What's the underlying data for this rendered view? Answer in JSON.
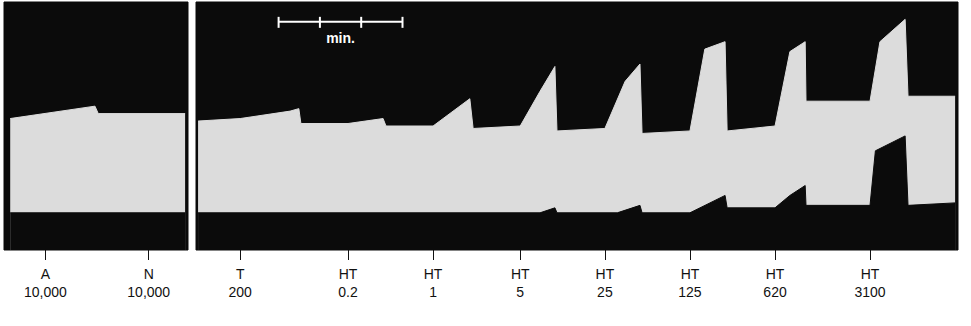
{
  "chart_data": [
    {
      "type": "area",
      "color": "#dcdcdc",
      "xlim": [
        0,
        4.45
      ],
      "ylim": [
        0,
        100
      ],
      "tick_labels": "x",
      "upper": {
        "x": [
          0.15,
          2.2,
          2.28,
          4.38
        ],
        "y": [
          53,
          58,
          55,
          55
        ]
      },
      "lower": {
        "x": [
          0.15,
          4.38
        ],
        "y": [
          15,
          15
        ]
      },
      "events": [
        {
          "x": 1.0,
          "drug": "A",
          "dose": {
            "value": 10000,
            "label": "10,000"
          }
        },
        {
          "x": 3.5,
          "drug": "N",
          "dose": {
            "value": 10000,
            "label": "10,000"
          }
        }
      ]
    },
    {
      "type": "area",
      "color": "#dcdcdc",
      "xlim": [
        0,
        18.45
      ],
      "ylim": [
        0,
        100
      ],
      "tick_labels": "x",
      "upper": {
        "x": [
          0.05,
          1.07,
          2.28,
          2.49,
          2.54,
          3.68,
          4.53,
          4.6,
          5.74,
          6.63,
          6.71,
          7.85,
          8.33,
          8.69,
          8.74,
          9.9,
          10.39,
          10.75,
          10.8,
          11.96,
          12.32,
          12.81,
          12.86,
          14.02,
          14.38,
          14.75,
          14.77,
          16.32,
          16.56,
          17.17,
          17.24,
          18.38
        ],
        "y": [
          52,
          53,
          56,
          57,
          51,
          51,
          53,
          50,
          50,
          61,
          49,
          50,
          64,
          74,
          48,
          49,
          68,
          75,
          47,
          48,
          81,
          84,
          48,
          50,
          80,
          84,
          60,
          60,
          84,
          93,
          62,
          62
        ]
      },
      "lower": {
        "x": [
          0.05,
          8.33,
          8.69,
          8.74,
          10.2,
          10.75,
          10.8,
          11.96,
          12.81,
          12.86,
          14.02,
          14.38,
          14.75,
          14.77,
          16.32,
          16.45,
          17.17,
          17.24,
          18.38
        ],
        "y": [
          15,
          15,
          17,
          15,
          15,
          18,
          15,
          15,
          22,
          17,
          17,
          22,
          26,
          18,
          18,
          40,
          46,
          18,
          19
        ]
      },
      "events": [
        {
          "x": 1.07,
          "drug": "T",
          "dose": 200
        },
        {
          "x": 3.68,
          "drug": "HT",
          "dose": 0.2
        },
        {
          "x": 5.74,
          "drug": "HT",
          "dose": 1
        },
        {
          "x": 7.85,
          "drug": "HT",
          "dose": 5
        },
        {
          "x": 9.9,
          "drug": "HT",
          "dose": 25
        },
        {
          "x": 11.96,
          "drug": "HT",
          "dose": 125
        },
        {
          "x": 14.02,
          "drug": "HT",
          "dose": 620
        },
        {
          "x": 16.32,
          "drug": "HT",
          "dose": 3100
        }
      ],
      "scale_bar": {
        "x": 2.0,
        "y": 92,
        "length": 3,
        "label": "min."
      }
    }
  ]
}
